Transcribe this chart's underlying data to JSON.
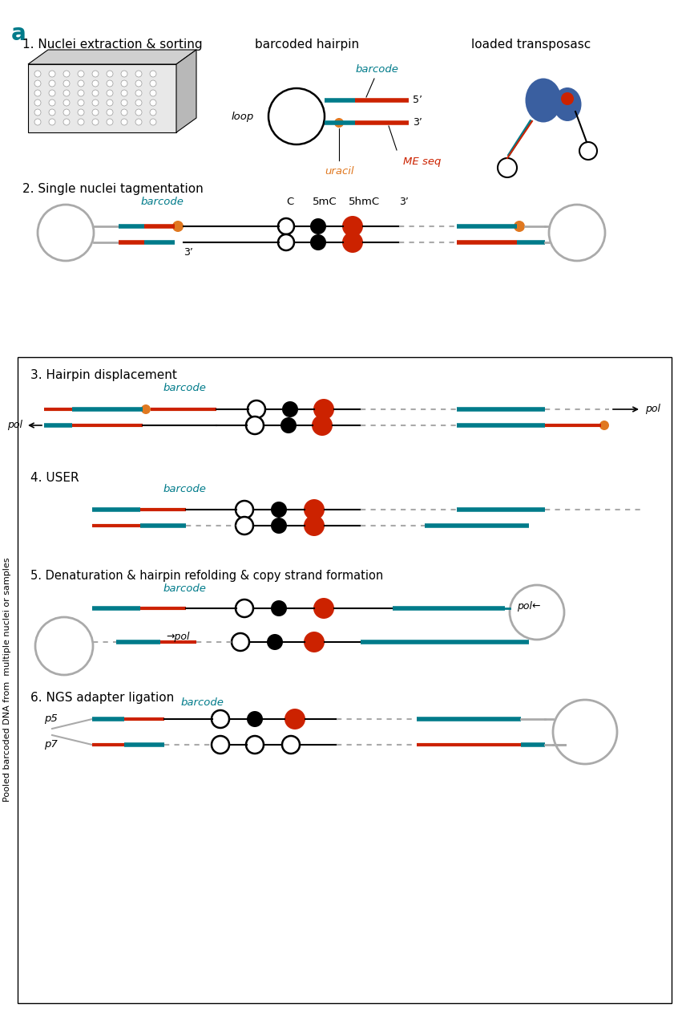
{
  "title_label": "a",
  "teal_color": "#007b8a",
  "red_color": "#cc2200",
  "orange_color": "#e07820",
  "blue_color": "#3a5fa0",
  "gray_color": "#888888",
  "lgray_color": "#aaaaaa",
  "black_color": "#000000",
  "white_color": "#ffffff",
  "bg_color": "#ffffff",
  "step1_label": "1. Nuclei extraction & sorting",
  "step1_sublabel1": "barcoded hairpin",
  "step1_sublabel2": "loaded transposasc",
  "hairpin_barcode": "barcode",
  "hairpin_5p": "5’",
  "hairpin_3p": "3’",
  "hairpin_loop": "loop",
  "hairpin_uracil": "uracil",
  "hairpin_MEseq": "ME seq",
  "step2_label": "2. Single nuclei tagmentation",
  "step2_barcode": "barcode",
  "step2_C": "C",
  "step2_5mC": "5mC",
  "step2_5hmC": "5hmC",
  "step2_3p": "3’",
  "step3_label": "3. Hairpin displacement",
  "step3_barcode": "barcode",
  "step3_pol": "pol",
  "step4_label": "4. USER",
  "step4_barcode": "barcode",
  "step5_label": "5. Denaturation & hairpin refolding & copy strand formation",
  "step5_barcode": "barcode",
  "step5_pol_r": "pol",
  "step5_pol_l": "pol",
  "step6_label": "6. NGS adapter ligation",
  "step6_barcode": "barcode",
  "step6_p5": "p5",
  "step6_p7": "p7",
  "side_label": "Pooled barcoded DNA from  multiple nuclei or samples",
  "fig_w": 8.56,
  "fig_h": 12.66,
  "fig_dpi": 100,
  "xlim": [
    0,
    856
  ],
  "ylim": [
    0,
    1266
  ]
}
